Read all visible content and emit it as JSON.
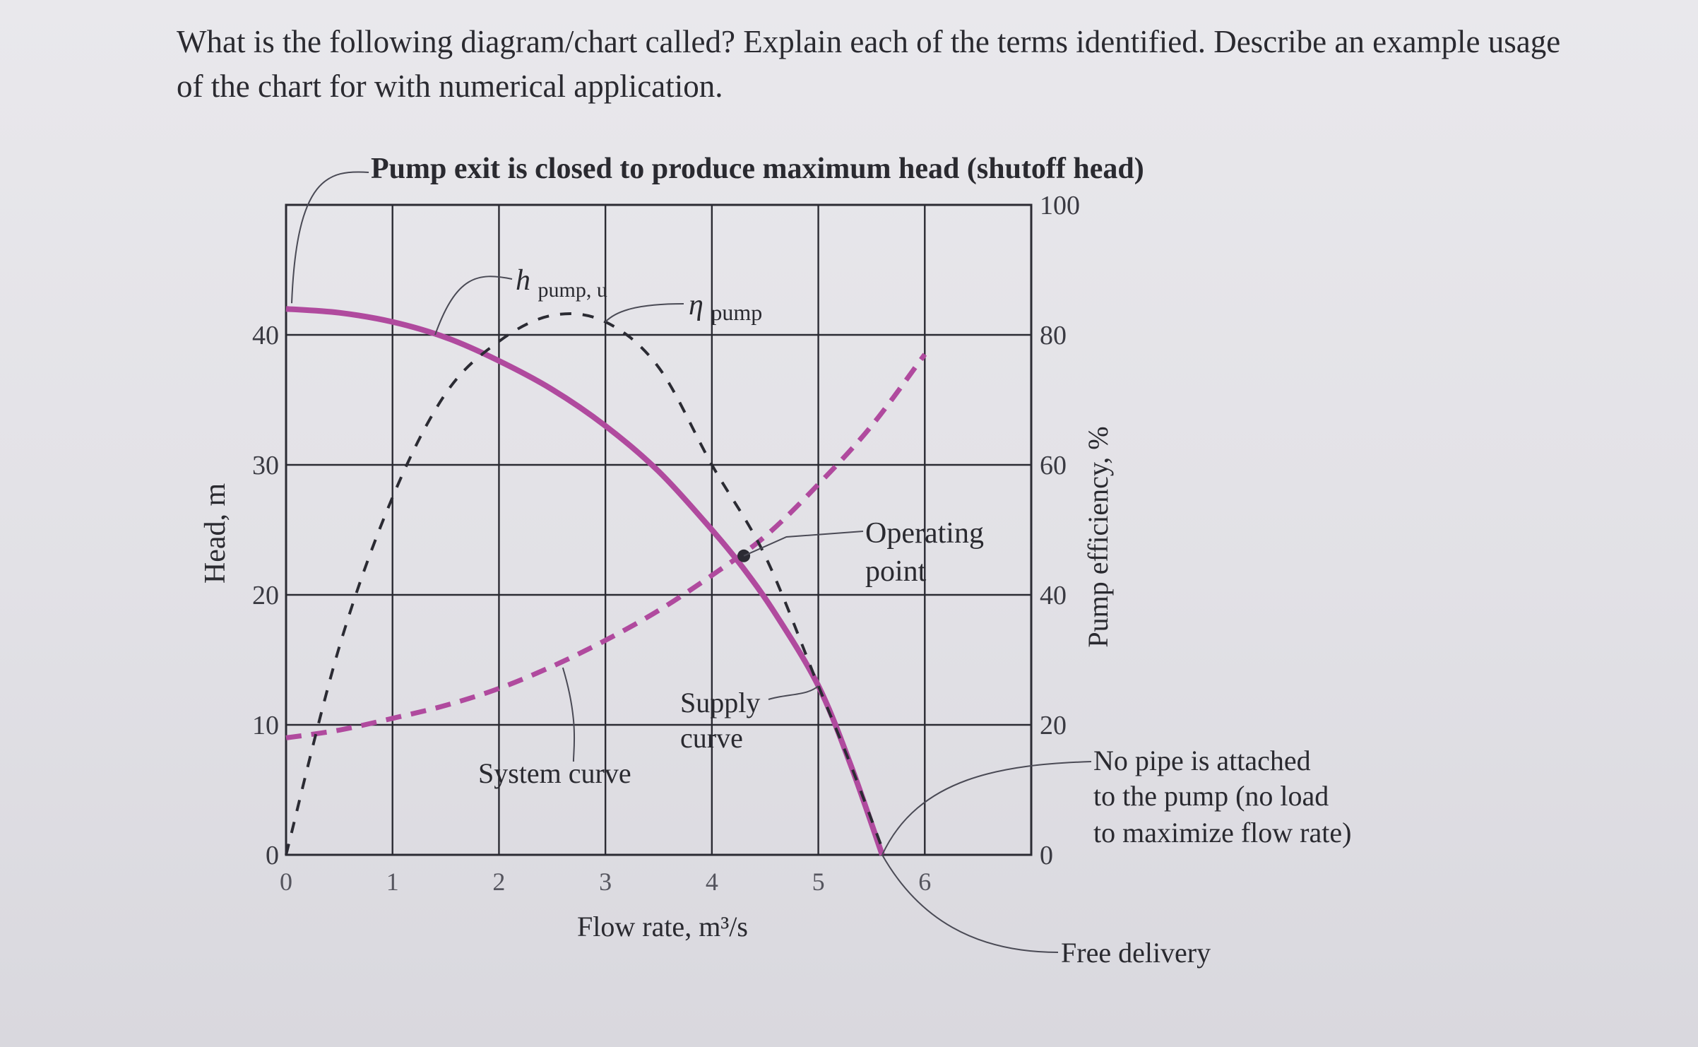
{
  "question": "What is the following diagram/chart called? Explain each of the terms identified. Describe an example usage of the chart for with numerical application.",
  "colors": {
    "grid": "#2b2b33",
    "pump_curve": "#b04a9e",
    "system_curve": "#b04a9e",
    "efficiency_curve": "#2b2b33",
    "text": "#2a2a30",
    "annotation_line": "#4a4a55"
  },
  "chart_data": {
    "type": "line",
    "title": "",
    "xlabel": "Flow rate, m³/s",
    "ylabel": "Head, m",
    "y2label": "Pump efficiency, %",
    "xlim": [
      0,
      7
    ],
    "ylim": [
      0,
      50
    ],
    "y2lim": [
      0,
      100
    ],
    "x_ticks": [
      "0",
      "1",
      "2",
      "3",
      "4",
      "5",
      "6"
    ],
    "y_ticks": [
      "0",
      "10",
      "20",
      "30",
      "40"
    ],
    "y2_ticks": [
      "0",
      "20",
      "40",
      "60",
      "80",
      "100"
    ],
    "grid": true,
    "series": [
      {
        "name": "h pump, u",
        "axis": "left",
        "style": "solid",
        "x": [
          0,
          0.5,
          1,
          1.5,
          2,
          2.5,
          3,
          3.5,
          4,
          4.3,
          4.6,
          5,
          5.3,
          5.6
        ],
        "y": [
          42,
          41.7,
          41,
          39.8,
          38,
          35.8,
          33,
          29.5,
          25,
          22,
          18.5,
          13,
          7,
          0
        ]
      },
      {
        "name": "System curve",
        "axis": "left",
        "style": "dashed",
        "x": [
          0,
          0.5,
          1,
          1.5,
          2,
          2.5,
          3,
          3.5,
          4,
          4.5,
          5,
          5.5,
          6
        ],
        "y": [
          9,
          9.6,
          10.5,
          11.5,
          12.8,
          14.5,
          16.5,
          18.8,
          21.5,
          24.5,
          28.5,
          33,
          38.5
        ]
      },
      {
        "name": "η pump",
        "axis": "right",
        "style": "dashed",
        "x": [
          0,
          0.5,
          1,
          1.5,
          2,
          2.5,
          3,
          3.5,
          4,
          4.5,
          5,
          5.3,
          5.6
        ],
        "y": [
          0,
          32,
          55,
          71,
          79,
          83,
          82,
          75,
          60,
          46,
          26,
          14,
          1
        ]
      }
    ],
    "operating_point": {
      "x": 4.3,
      "y": 23
    },
    "annotations": {
      "top": "Pump exit is closed to produce maximum head (shutoff head)",
      "h_pump_main": "h",
      "h_pump_sub": "pump, u",
      "eta_main": "η",
      "eta_sub": "pump",
      "operating_1": "Operating",
      "operating_2": "point",
      "supply_1": "Supply",
      "supply_2": "curve",
      "system": "System curve",
      "nopipe_1": "No pipe is attached",
      "nopipe_2": "to the pump (no load",
      "nopipe_3": "to maximize flow rate)",
      "free": "Free delivery"
    }
  }
}
